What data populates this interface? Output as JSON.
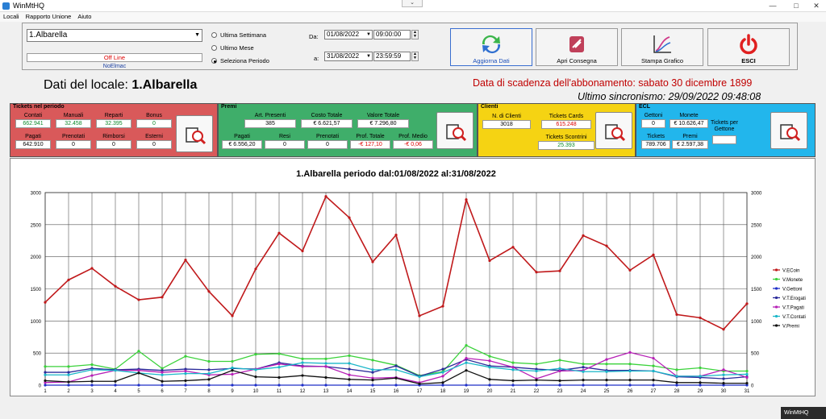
{
  "window": {
    "title": "WinMtHQ",
    "controls": [
      "—",
      "□",
      "✕"
    ],
    "restore": "▭"
  },
  "menu": [
    "Locali",
    "Rapporto Unione",
    "Aiuto"
  ],
  "selector": {
    "locale": "1.Albarella",
    "status": "Off Line",
    "note": "NoElmac"
  },
  "period": {
    "options": [
      "Ultima Settimana",
      "Ultimo Mese",
      "Seleziona Periodo"
    ],
    "selected_index": 2
  },
  "dates": {
    "da_label": "Da:",
    "a_label": "a:",
    "from_date": "01/08/2022",
    "from_time": "09:00:00",
    "to_date": "31/08/2022",
    "to_time": "23:59:59"
  },
  "buttons": {
    "aggiorna": "Aggiorna Dati",
    "apri": "Apri Consegna",
    "stampa": "Stampa Grafico",
    "esci": "ESCI"
  },
  "header": {
    "dati_label": "Dati del locale:",
    "dati_value": "1.Albarella",
    "scadenza": "Data di scadenza dell'abbonamento: sabato 30 dicembre 1899",
    "sync": "Ultimo sincronismo: 29/09/2022 09:48:08"
  },
  "tickets": {
    "title": "Tickets nel periodo",
    "row1": [
      {
        "label": "Contati",
        "value": "662.941",
        "cls": "green"
      },
      {
        "label": "Manuali",
        "value": "32.458",
        "cls": "green"
      },
      {
        "label": "Reparti",
        "value": "32.395",
        "cls": "green"
      },
      {
        "label": "Bonus",
        "value": "0",
        "cls": "green"
      }
    ],
    "row2": [
      {
        "label": "Pagati",
        "value": "642.910",
        "cls": ""
      },
      {
        "label": "Prenotati",
        "value": "0",
        "cls": ""
      },
      {
        "label": "Rimborsi",
        "value": "0",
        "cls": ""
      },
      {
        "label": "Esterni",
        "value": "0",
        "cls": ""
      }
    ]
  },
  "premi": {
    "title": "Premi",
    "row1": [
      {
        "label": "Art. Presenti",
        "value": "385",
        "cls": ""
      },
      {
        "label": "Costo Totale",
        "value": "€ 6.621,57",
        "cls": ""
      },
      {
        "label": "Valore Totale",
        "value": "€ 7.296,80",
        "cls": ""
      }
    ],
    "row2": [
      {
        "label": "Pagati",
        "value": "€ 6.556,20",
        "cls": ""
      },
      {
        "label": "Resi",
        "value": "0",
        "cls": ""
      },
      {
        "label": "Prenotati",
        "value": "0",
        "cls": ""
      },
      {
        "label": "Prof. Totale",
        "value": "-€ 127,10",
        "cls": "red"
      },
      {
        "label": "Prof. Medio",
        "value": "-€ 0,06",
        "cls": "red"
      }
    ]
  },
  "clienti": {
    "title": "Clienti",
    "n_label": "N. di Clienti",
    "n_value": "3018",
    "cards_label": "Tickets Cards",
    "cards_value": "615.248",
    "scontrini_label": "Tickets Scontrini",
    "scontrini_value": "25.393"
  },
  "ecl": {
    "title": "ECL",
    "gettoni_label": "Gettoni",
    "gettoni_value": "0",
    "monete_label": "Monete",
    "monete_value": "€ 10.626,47",
    "tpg_label": "Tickets per Gettone",
    "tpg_value": "",
    "tickets_label": "Tickets",
    "tickets_value": "789.706",
    "premi_label": "Premi",
    "premi_value": "€ 2.597,38"
  },
  "colors": {
    "tickets": "#d9595a",
    "premi": "#3fae6a",
    "clienti": "#f5d313",
    "ecl": "#22b6ec"
  },
  "chart_data": {
    "type": "line",
    "title": "1.Albarella periodo dal:01/08/2022 al:31/08/2022",
    "x": [
      1,
      2,
      3,
      4,
      5,
      6,
      7,
      8,
      9,
      10,
      11,
      12,
      13,
      14,
      15,
      16,
      17,
      18,
      19,
      20,
      21,
      22,
      23,
      24,
      25,
      26,
      27,
      28,
      29,
      30,
      31
    ],
    "ylim": [
      0,
      3000
    ],
    "yticks": [
      0,
      500,
      1000,
      1500,
      2000,
      2500,
      3000
    ],
    "grid": true,
    "legend_position": "right",
    "series": [
      {
        "name": "V.ECoin",
        "color": "#c0191b",
        "values": [
          1290,
          1640,
          1820,
          1540,
          1330,
          1370,
          1950,
          1460,
          1080,
          1810,
          2370,
          2090,
          2940,
          2610,
          1920,
          2340,
          1080,
          1230,
          2890,
          1940,
          2150,
          1760,
          1780,
          2330,
          2170,
          1790,
          2030,
          1100,
          1050,
          870,
          1270
        ]
      },
      {
        "name": "V.Monete",
        "color": "#3ad23a",
        "values": [
          290,
          290,
          320,
          250,
          530,
          260,
          450,
          370,
          370,
          480,
          490,
          410,
          410,
          460,
          390,
          310,
          150,
          210,
          620,
          450,
          350,
          330,
          390,
          330,
          330,
          330,
          300,
          240,
          270,
          220,
          220
        ]
      },
      {
        "name": "V.Gettoni",
        "color": "#1f2fc8",
        "values": [
          0,
          0,
          0,
          0,
          0,
          0,
          0,
          0,
          0,
          0,
          0,
          0,
          0,
          0,
          0,
          0,
          0,
          0,
          0,
          0,
          0,
          0,
          0,
          0,
          0,
          0,
          0,
          0,
          0,
          0,
          0
        ]
      },
      {
        "name": "V.T.Erogati",
        "color": "#2a2a9a",
        "values": [
          200,
          200,
          260,
          240,
          250,
          230,
          250,
          240,
          260,
          250,
          350,
          300,
          290,
          250,
          200,
          300,
          140,
          250,
          400,
          300,
          280,
          250,
          230,
          280,
          230,
          230,
          220,
          130,
          120,
          100,
          130
        ]
      },
      {
        "name": "V.T.Pagati",
        "color": "#b61fb6",
        "values": [
          40,
          50,
          150,
          230,
          230,
          200,
          220,
          160,
          170,
          250,
          330,
          290,
          290,
          160,
          110,
          120,
          40,
          140,
          420,
          380,
          280,
          100,
          220,
          230,
          400,
          510,
          420,
          140,
          140,
          240,
          120
        ]
      },
      {
        "name": "V.T.Contati",
        "color": "#19b6c8",
        "values": [
          160,
          160,
          240,
          230,
          190,
          160,
          180,
          180,
          270,
          240,
          280,
          350,
          340,
          340,
          240,
          240,
          130,
          200,
          350,
          280,
          240,
          220,
          260,
          210,
          210,
          220,
          220,
          140,
          140,
          160,
          170
        ]
      },
      {
        "name": "V.Premi",
        "color": "#111111",
        "values": [
          70,
          50,
          60,
          60,
          190,
          60,
          70,
          90,
          230,
          130,
          120,
          150,
          120,
          90,
          80,
          110,
          20,
          40,
          230,
          90,
          70,
          80,
          70,
          80,
          80,
          80,
          80,
          40,
          40,
          30,
          30
        ]
      }
    ]
  },
  "taskbar": {
    "label": "WinMtHQ"
  }
}
